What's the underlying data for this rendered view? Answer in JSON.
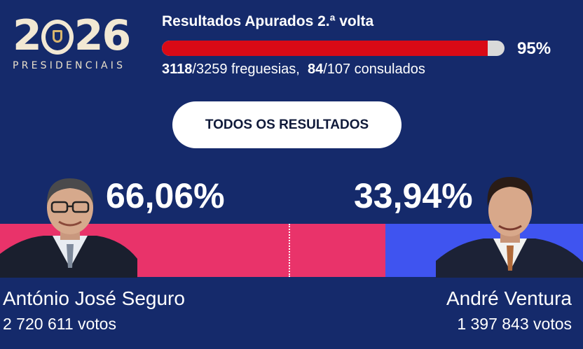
{
  "logo": {
    "year_before": "2",
    "year_after": "26",
    "subtitle": "PRESIDENCIAIS"
  },
  "count": {
    "title": "Resultados Apurados 2.ª volta",
    "percent": 95,
    "percent_label": "95%",
    "parishes_done": "3118",
    "parishes_total": "/3259 freguesias,",
    "consulates_done": "84",
    "consulates_total": "/107 consulados"
  },
  "button": {
    "label": "TODOS OS RESULTADOS"
  },
  "candidates": [
    {
      "name": "António José Seguro",
      "votes": "2 720 611 votos",
      "percent_label": "66,06%",
      "percent": 66.06,
      "color": "#e9336a"
    },
    {
      "name": "André Ventura",
      "votes": "1 397 843 votos",
      "percent_label": "33,94%",
      "percent": 33.94,
      "color": "#3f54f0"
    }
  ],
  "colors": {
    "background": "#152a6b",
    "progress": "#d90a16"
  }
}
